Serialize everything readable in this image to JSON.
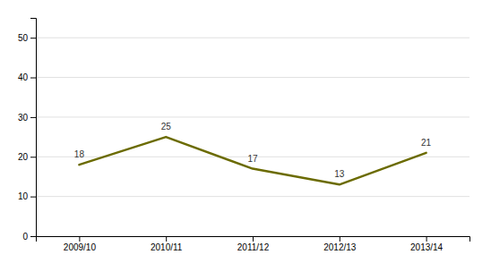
{
  "chart_data": {
    "type": "line",
    "categories": [
      "2009/10",
      "2010/11",
      "2011/12",
      "2012/13",
      "2013/14"
    ],
    "values": [
      18,
      25,
      17,
      13,
      21
    ],
    "color": "#6b6b00",
    "ylim": [
      0,
      55
    ],
    "yticks": [
      0,
      10,
      20,
      30,
      40,
      50
    ],
    "grid": true,
    "data_labels": true
  }
}
